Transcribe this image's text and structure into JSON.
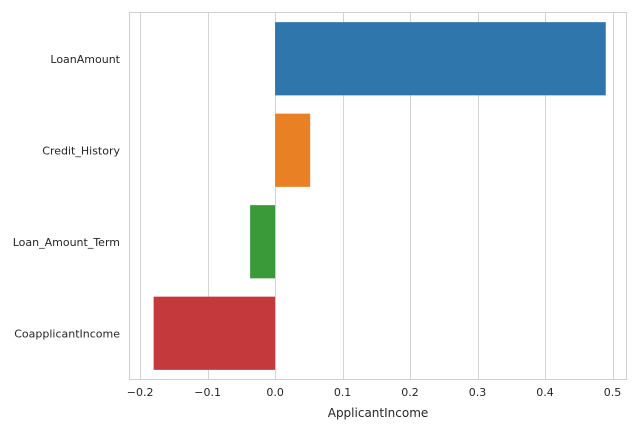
{
  "chart_data": {
    "type": "bar",
    "orientation": "horizontal",
    "title": "",
    "xlabel": "ApplicantIncome",
    "ylabel": "",
    "xlim": [
      -0.215,
      0.52
    ],
    "grid": true,
    "x_ticks": [
      -0.2,
      -0.1,
      0.0,
      0.1,
      0.2,
      0.3,
      0.4,
      0.5
    ],
    "x_tick_labels": [
      "−0.2",
      "−0.1",
      "0.0",
      "0.1",
      "0.2",
      "0.3",
      "0.4",
      "0.5"
    ],
    "categories": [
      "LoanAmount",
      "Credit_History",
      "Loan_Amount_Term",
      "CoapplicantIncome"
    ],
    "values": [
      0.49,
      0.052,
      -0.037,
      -0.18
    ],
    "colors": [
      "#2f76ad",
      "#e98024",
      "#3a9a3a",
      "#c43a3c"
    ]
  }
}
